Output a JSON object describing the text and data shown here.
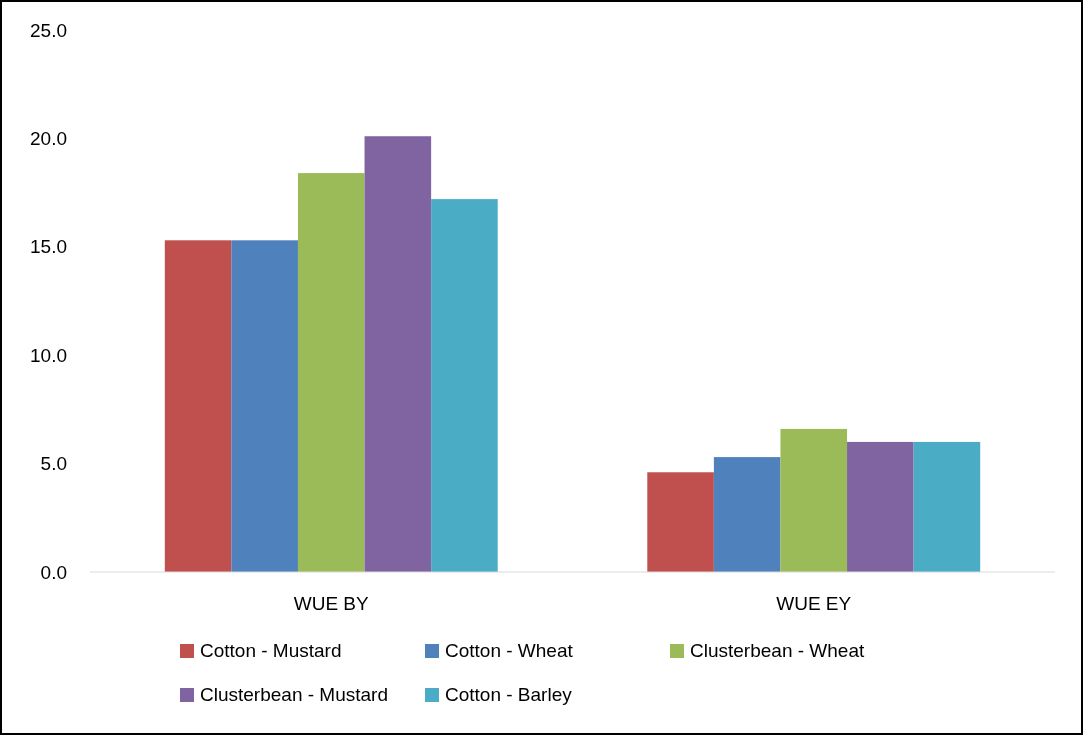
{
  "chart_data": {
    "type": "bar",
    "categories": [
      "WUE BY",
      "WUE EY"
    ],
    "series": [
      {
        "name": "Cotton - Mustard",
        "color": "#c0504d",
        "values": [
          15.3,
          4.6
        ]
      },
      {
        "name": "Cotton - Wheat",
        "color": "#4f81bd",
        "values": [
          15.3,
          5.3
        ]
      },
      {
        "name": "Clusterbean - Wheat",
        "color": "#9bbb59",
        "values": [
          18.4,
          6.6
        ]
      },
      {
        "name": "Clusterbean - Mustard",
        "color": "#8064a2",
        "values": [
          20.1,
          6.0
        ]
      },
      {
        "name": "Cotton - Barley",
        "color": "#4bacc6",
        "values": [
          17.2,
          6.0
        ]
      }
    ],
    "ylim": [
      0,
      25
    ],
    "yticks": [
      {
        "value": 0,
        "label": "0.0"
      },
      {
        "value": 5,
        "label": "5.0"
      },
      {
        "value": 10,
        "label": "10.0"
      },
      {
        "value": 15,
        "label": "15.0"
      },
      {
        "value": 20,
        "label": "20.0"
      },
      {
        "value": 25,
        "label": "25.0"
      }
    ],
    "grid": false,
    "legend": "bottom"
  }
}
